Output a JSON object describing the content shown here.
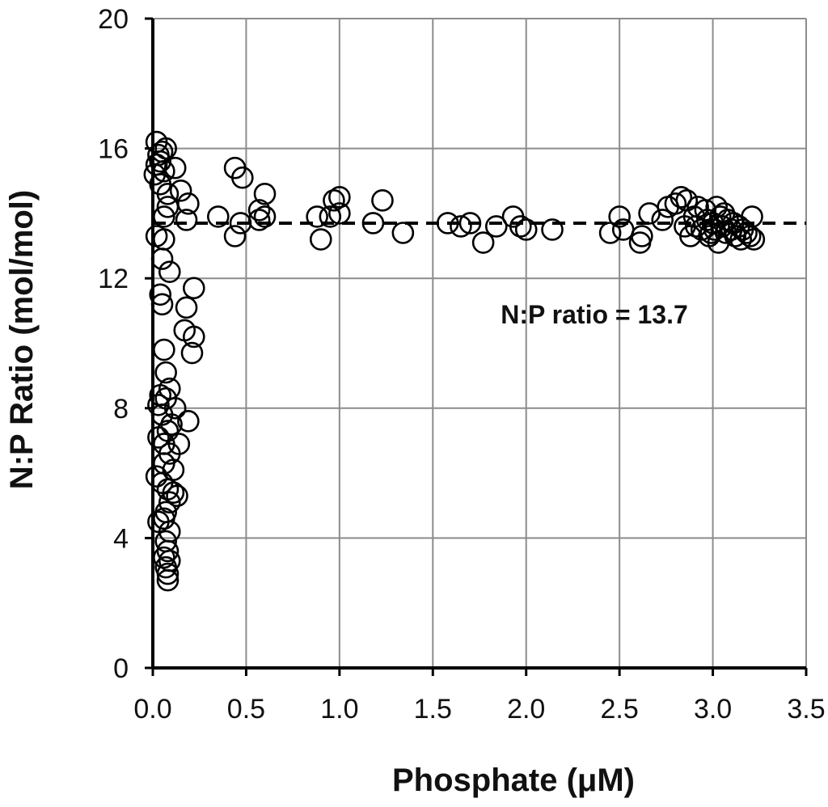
{
  "chart_data": {
    "type": "scatter",
    "title": "",
    "xlabel": "Phosphate (μM)",
    "ylabel": "N:P Ratio (mol/mol)",
    "xlim": [
      0,
      3.5
    ],
    "ylim": [
      0,
      20
    ],
    "x_ticks": [
      "0.0",
      "0.5",
      "1.0",
      "1.5",
      "2.0",
      "2.5",
      "3.0",
      "3.5"
    ],
    "y_ticks": [
      "0",
      "4",
      "8",
      "12",
      "16",
      "20"
    ],
    "grid": true,
    "reference_line": {
      "y": 13.7,
      "style": "dashed",
      "label": "N:P ratio = 13.7"
    },
    "series": [
      {
        "marker": "open-circle",
        "points": [
          [
            0.02,
            16.2
          ],
          [
            0.03,
            15.8
          ],
          [
            0.02,
            15.5
          ],
          [
            0.01,
            15.2
          ],
          [
            0.04,
            15.6
          ],
          [
            0.05,
            15.9
          ],
          [
            0.07,
            16.0
          ],
          [
            0.06,
            15.3
          ],
          [
            0.04,
            14.9
          ],
          [
            0.08,
            14.6
          ],
          [
            0.12,
            15.4
          ],
          [
            0.15,
            14.7
          ],
          [
            0.19,
            14.3
          ],
          [
            0.18,
            13.8
          ],
          [
            0.08,
            14.2
          ],
          [
            0.06,
            13.9
          ],
          [
            0.02,
            13.3
          ],
          [
            0.06,
            13.2
          ],
          [
            0.05,
            12.6
          ],
          [
            0.09,
            12.2
          ],
          [
            0.22,
            11.7
          ],
          [
            0.04,
            11.5
          ],
          [
            0.05,
            11.2
          ],
          [
            0.18,
            11.1
          ],
          [
            0.17,
            10.4
          ],
          [
            0.22,
            10.2
          ],
          [
            0.21,
            9.7
          ],
          [
            0.06,
            9.8
          ],
          [
            0.07,
            9.1
          ],
          [
            0.09,
            8.6
          ],
          [
            0.04,
            8.4
          ],
          [
            0.07,
            8.3
          ],
          [
            0.03,
            8.1
          ],
          [
            0.12,
            8.0
          ],
          [
            0.19,
            7.6
          ],
          [
            0.05,
            7.8
          ],
          [
            0.08,
            7.3
          ],
          [
            0.1,
            7.5
          ],
          [
            0.03,
            7.1
          ],
          [
            0.06,
            6.9
          ],
          [
            0.14,
            6.9
          ],
          [
            0.09,
            6.6
          ],
          [
            0.06,
            6.3
          ],
          [
            0.11,
            6.1
          ],
          [
            0.02,
            5.9
          ],
          [
            0.05,
            5.7
          ],
          [
            0.08,
            5.5
          ],
          [
            0.11,
            5.4
          ],
          [
            0.13,
            5.3
          ],
          [
            0.09,
            5.1
          ],
          [
            0.07,
            4.8
          ],
          [
            0.03,
            4.5
          ],
          [
            0.06,
            4.6
          ],
          [
            0.09,
            4.2
          ],
          [
            0.07,
            3.9
          ],
          [
            0.08,
            3.6
          ],
          [
            0.06,
            3.4
          ],
          [
            0.09,
            3.3
          ],
          [
            0.07,
            3.1
          ],
          [
            0.08,
            2.9
          ],
          [
            0.08,
            2.7
          ],
          [
            0.35,
            13.9
          ],
          [
            0.44,
            15.4
          ],
          [
            0.48,
            15.1
          ],
          [
            0.44,
            13.3
          ],
          [
            0.47,
            13.7
          ],
          [
            0.57,
            13.8
          ],
          [
            0.57,
            14.1
          ],
          [
            0.6,
            14.6
          ],
          [
            0.6,
            13.9
          ],
          [
            0.88,
            13.9
          ],
          [
            0.9,
            13.2
          ],
          [
            0.95,
            13.9
          ],
          [
            0.97,
            14.4
          ],
          [
            1.0,
            14.5
          ],
          [
            1.0,
            14.0
          ],
          [
            1.18,
            13.7
          ],
          [
            1.23,
            14.4
          ],
          [
            1.34,
            13.4
          ],
          [
            1.58,
            13.7
          ],
          [
            1.65,
            13.6
          ],
          [
            1.7,
            13.7
          ],
          [
            1.77,
            13.1
          ],
          [
            1.84,
            13.6
          ],
          [
            1.93,
            13.9
          ],
          [
            1.97,
            13.6
          ],
          [
            2.0,
            13.5
          ],
          [
            2.14,
            13.5
          ],
          [
            2.45,
            13.4
          ],
          [
            2.5,
            13.9
          ],
          [
            2.52,
            13.5
          ],
          [
            2.61,
            13.1
          ],
          [
            2.62,
            13.3
          ],
          [
            2.66,
            14.0
          ],
          [
            2.73,
            13.8
          ],
          [
            2.76,
            14.2
          ],
          [
            2.8,
            14.3
          ],
          [
            2.83,
            14.5
          ],
          [
            2.86,
            14.4
          ],
          [
            2.88,
            13.3
          ],
          [
            2.9,
            13.9
          ],
          [
            2.92,
            14.2
          ],
          [
            2.94,
            13.5
          ],
          [
            2.96,
            14.1
          ],
          [
            2.97,
            13.8
          ],
          [
            2.99,
            13.4
          ],
          [
            3.0,
            13.7
          ],
          [
            3.02,
            14.2
          ],
          [
            3.03,
            13.1
          ],
          [
            3.04,
            13.9
          ],
          [
            3.05,
            13.6
          ],
          [
            3.06,
            14.0
          ],
          [
            3.07,
            13.4
          ],
          [
            3.08,
            13.8
          ],
          [
            3.1,
            13.5
          ],
          [
            3.11,
            13.7
          ],
          [
            3.12,
            13.3
          ],
          [
            3.14,
            13.6
          ],
          [
            3.15,
            13.2
          ],
          [
            3.16,
            13.5
          ],
          [
            3.18,
            13.4
          ],
          [
            3.2,
            13.3
          ],
          [
            3.21,
            13.9
          ],
          [
            3.22,
            13.2
          ],
          [
            2.91,
            13.6
          ],
          [
            2.98,
            13.3
          ],
          [
            3.01,
            13.5
          ],
          [
            2.85,
            13.6
          ]
        ]
      }
    ]
  }
}
